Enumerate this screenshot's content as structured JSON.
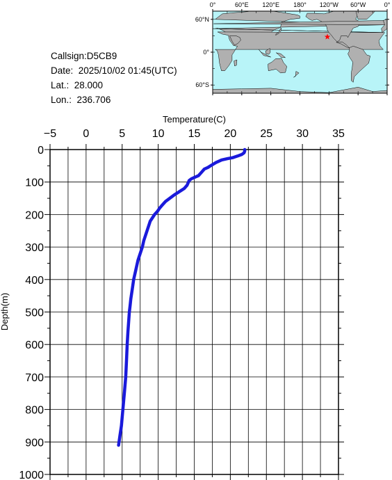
{
  "info": {
    "callsign": "Callsign:D5CB9",
    "date": "Date:  2025/10/02 01:45(UTC)",
    "lat": "Lat.:  28.000",
    "lon": "Lon.:  236.706"
  },
  "map": {
    "lon_labels": [
      "0°",
      "60°E",
      "120°E",
      "180°",
      "120°W",
      "60°W",
      "0°"
    ],
    "lat_labels": [
      "60°N",
      "0°",
      "60°S"
    ],
    "ocean_color": "#b8f4f8",
    "land_color": "#b0b0b0",
    "marker": {
      "lat": 28.0,
      "lon": 236.706,
      "color": "#ff0000",
      "icon": "star-icon"
    }
  },
  "chart_data": {
    "type": "line",
    "xlabel": "Temperature(C)",
    "ylabel": "Depth(m)",
    "xlim": [
      -5,
      35
    ],
    "ylim": [
      1000,
      0
    ],
    "x_ticks": [
      "-5",
      "0",
      "5",
      "10",
      "15",
      "20",
      "25",
      "30",
      "35"
    ],
    "y_ticks": [
      "0",
      "100",
      "200",
      "300",
      "400",
      "500",
      "600",
      "700",
      "800",
      "900",
      "1000"
    ],
    "grid": true,
    "series": [
      {
        "color": "#1a1adb",
        "points": [
          [
            22.0,
            0
          ],
          [
            22.0,
            5
          ],
          [
            21.9,
            10
          ],
          [
            21.6,
            15
          ],
          [
            21.0,
            20
          ],
          [
            20.3,
            25
          ],
          [
            19.6,
            28
          ],
          [
            18.8,
            32
          ],
          [
            18.0,
            40
          ],
          [
            17.4,
            48
          ],
          [
            16.9,
            55
          ],
          [
            16.4,
            60
          ],
          [
            16.0,
            70
          ],
          [
            15.6,
            80
          ],
          [
            15.1,
            85
          ],
          [
            14.6,
            90
          ],
          [
            14.3,
            95
          ],
          [
            14.0,
            110
          ],
          [
            13.6,
            120
          ],
          [
            12.9,
            130
          ],
          [
            12.2,
            140
          ],
          [
            11.6,
            150
          ],
          [
            11.0,
            160
          ],
          [
            10.6,
            170
          ],
          [
            10.2,
            180
          ],
          [
            9.9,
            190
          ],
          [
            9.5,
            200
          ],
          [
            9.2,
            210
          ],
          [
            8.9,
            220
          ],
          [
            8.6,
            240
          ],
          [
            8.3,
            260
          ],
          [
            8.0,
            280
          ],
          [
            7.8,
            300
          ],
          [
            7.5,
            320
          ],
          [
            7.2,
            340
          ],
          [
            7.0,
            360
          ],
          [
            6.8,
            380
          ],
          [
            6.6,
            400
          ],
          [
            6.4,
            430
          ],
          [
            6.2,
            460
          ],
          [
            6.1,
            480
          ],
          [
            6.0,
            500
          ],
          [
            5.9,
            530
          ],
          [
            5.8,
            560
          ],
          [
            5.7,
            600
          ],
          [
            5.6,
            650
          ],
          [
            5.5,
            700
          ],
          [
            5.3,
            750
          ],
          [
            5.1,
            800
          ],
          [
            4.9,
            850
          ],
          [
            4.7,
            880
          ],
          [
            4.5,
            910
          ]
        ]
      }
    ]
  }
}
